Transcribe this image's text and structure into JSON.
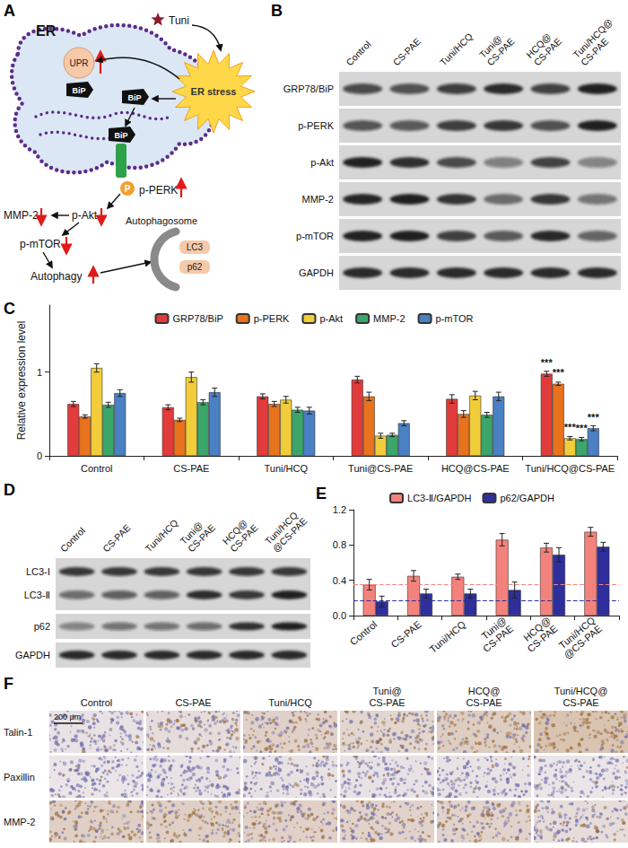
{
  "panels": {
    "A": {
      "letter": "A",
      "labels": {
        "er": "ER",
        "drug": "Tuni",
        "upr": "UPR",
        "bip": "BiP",
        "stress": "ER stress",
        "mmp2": "MMP-2",
        "pakt": "p-Akt",
        "pperk": "p-PERK",
        "phos": "P",
        "pmtor": "p-mTOR",
        "autophagy": "Autophagy",
        "autophagosome": "Autophagosome",
        "lc3": "LC3",
        "p62": "p62"
      }
    },
    "B": {
      "letter": "B",
      "lanes": [
        "Control",
        "CS-PAE",
        "Tuni/HCQ",
        "Tuni@\nCS-PAE",
        "HCQ@\nCS-PAE",
        "Tuni/HCQ@\nCS-PAE"
      ],
      "rows": [
        "GRP78/BiP",
        "p-PERK",
        "p-Akt",
        "MMP-2",
        "p-mTOR",
        "GAPDH"
      ]
    },
    "C": {
      "letter": "C"
    },
    "D": {
      "letter": "D",
      "lanes": [
        "Control",
        "CS-PAE",
        "Tuni/HCQ",
        "Tuni@\nCS-PAE",
        "HCQ@\nCS-PAE",
        "Tuni/HCQ\n@CS-PAE"
      ],
      "rows": [
        "LC3-Ⅰ",
        "LC3-Ⅱ",
        "p62",
        "GAPDH"
      ]
    },
    "E": {
      "letter": "E"
    },
    "F": {
      "letter": "F",
      "lanes": [
        "Control",
        "CS-PAE",
        "Tuni/HCQ",
        "Tuni@\nCS-PAE",
        "HCQ@\nCS-PAE",
        "Tuni/HCQ@\nCS-PAE"
      ],
      "rows": [
        "Talin-1",
        "Paxillin",
        "MMP-2"
      ],
      "scale_bar": "200 μm"
    }
  },
  "chart_data": [
    {
      "type": "bar",
      "ylabel": "Relative expression level",
      "categories": [
        "Control",
        "CS-PAE",
        "Tuni/HCQ",
        "Tuni@CS-PAE",
        "HCQ@CS-PAE",
        "Tuni/HCQ@CS-PAE"
      ],
      "series": [
        {
          "name": "GRP78/BiP",
          "color": "#e23b3b",
          "values": [
            0.62,
            0.58,
            0.71,
            0.91,
            0.68,
            0.98
          ],
          "errors": [
            0.03,
            0.03,
            0.03,
            0.04,
            0.05,
            0.03
          ],
          "annotations": [
            {
              "category": "Tuni/HCQ@CS-PAE",
              "text": "***"
            }
          ]
        },
        {
          "name": "p-PERK",
          "color": "#e8731c",
          "values": [
            0.47,
            0.43,
            0.62,
            0.71,
            0.5,
            0.86
          ],
          "errors": [
            0.02,
            0.02,
            0.03,
            0.05,
            0.04,
            0.02
          ],
          "annotations": [
            {
              "category": "Tuni/HCQ@CS-PAE",
              "text": "***"
            }
          ]
        },
        {
          "name": "p-Akt",
          "color": "#f2cd3a",
          "values": [
            1.05,
            0.94,
            0.67,
            0.24,
            0.72,
            0.21
          ],
          "errors": [
            0.05,
            0.06,
            0.04,
            0.03,
            0.05,
            0.02
          ],
          "annotations": [
            {
              "category": "Tuni/HCQ@CS-PAE",
              "text": "***"
            }
          ]
        },
        {
          "name": "MMP-2",
          "color": "#3aa66a",
          "values": [
            0.61,
            0.64,
            0.55,
            0.25,
            0.49,
            0.2
          ],
          "errors": [
            0.03,
            0.03,
            0.03,
            0.02,
            0.03,
            0.02
          ],
          "annotations": [
            {
              "category": "Tuni/HCQ@CS-PAE",
              "text": "***"
            }
          ]
        },
        {
          "name": "p-mTOR",
          "color": "#4a80c4",
          "values": [
            0.75,
            0.76,
            0.54,
            0.39,
            0.71,
            0.33
          ],
          "errors": [
            0.04,
            0.05,
            0.04,
            0.03,
            0.05,
            0.03
          ],
          "annotations": [
            {
              "category": "Tuni/HCQ@CS-PAE",
              "text": "***"
            }
          ]
        }
      ],
      "ylim": [
        0,
        1.8
      ],
      "yticks": [
        0,
        1
      ],
      "grid": false,
      "legend": "top"
    },
    {
      "type": "bar",
      "categories": [
        "Control",
        "CS-PAE",
        "Tuni/HCQ",
        "Tuni@\nCS-PAE",
        "HCQ@\nCS-PAE",
        "Tuni/HCQ\n@CS-PAE"
      ],
      "series": [
        {
          "name": "LC3-Ⅱ/GAPDH",
          "color": "#f4827c",
          "values": [
            0.35,
            0.45,
            0.44,
            0.86,
            0.77,
            0.95
          ],
          "errors": [
            0.06,
            0.06,
            0.03,
            0.07,
            0.05,
            0.05
          ],
          "reference": 0.35
        },
        {
          "name": "p62/GAPDH",
          "color": "#2e2e9c",
          "values": [
            0.16,
            0.25,
            0.25,
            0.29,
            0.69,
            0.78
          ],
          "errors": [
            0.06,
            0.05,
            0.05,
            0.09,
            0.08,
            0.05
          ],
          "reference": 0.17
        }
      ],
      "ylim": [
        0,
        1.2
      ],
      "yticks": [
        {
          "value": 0,
          "label": "0.0"
        },
        0.4,
        0.8,
        1.2
      ],
      "grid": false,
      "legend": "top"
    }
  ]
}
